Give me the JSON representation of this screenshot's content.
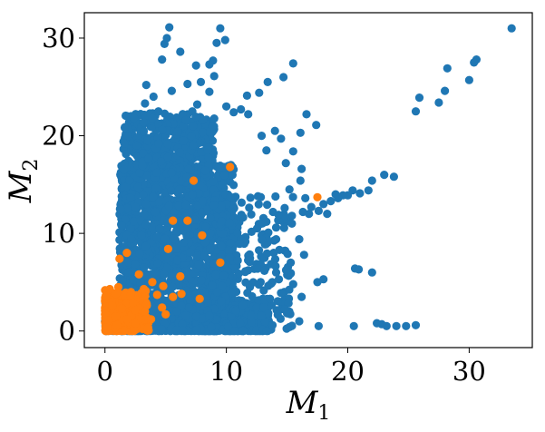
{
  "chart_data": {
    "type": "scatter",
    "xlabel": "M",
    "xlabel_sub": "1",
    "ylabel": "M",
    "ylabel_sub": "2",
    "xlim": [
      -1.7,
      35.2
    ],
    "ylim": [
      -1.7,
      32.6
    ],
    "x_ticks": [
      0,
      10,
      20,
      30
    ],
    "x_tick_labels": [
      "0",
      "10",
      "20",
      "30"
    ],
    "y_ticks": [
      0,
      10,
      20,
      30
    ],
    "y_tick_labels": [
      "0",
      "10",
      "20",
      "30"
    ],
    "grid": false,
    "legend": "none",
    "series": [
      {
        "color": "#1f77b4",
        "points": [
          [
            33.5,
            31.0
          ],
          [
            30.6,
            27.8
          ],
          [
            30.4,
            27.5
          ],
          [
            30.0,
            25.7
          ],
          [
            28.2,
            26.9
          ],
          [
            28.0,
            24.6
          ],
          [
            27.5,
            23.4
          ],
          [
            25.9,
            23.9
          ],
          [
            25.6,
            22.5
          ],
          [
            23.8,
            15.8
          ],
          [
            23.0,
            16.0
          ],
          [
            22.0,
            15.4
          ],
          [
            21.7,
            14.4
          ],
          [
            21.0,
            14.1
          ],
          [
            20.4,
            14.4
          ],
          [
            20.0,
            13.9
          ],
          [
            19.6,
            13.9
          ],
          [
            19.2,
            13.6
          ],
          [
            18.6,
            13.3
          ],
          [
            18.0,
            13.0
          ],
          [
            17.6,
            12.3
          ],
          [
            17.0,
            12.7
          ],
          [
            16.8,
            12.0
          ],
          [
            16.3,
            12.2
          ],
          [
            18.3,
            12.0
          ],
          [
            19.0,
            14.0
          ],
          [
            25.6,
            0.6
          ],
          [
            24.8,
            0.5
          ],
          [
            24.0,
            0.5
          ],
          [
            23.2,
            0.5
          ],
          [
            22.8,
            0.7
          ],
          [
            22.4,
            0.8
          ],
          [
            20.5,
            0.5
          ],
          [
            20.6,
            6.4
          ],
          [
            20.9,
            6.3
          ],
          [
            22.0,
            6.0
          ],
          [
            18.0,
            5.3
          ],
          [
            17.5,
            5.0
          ],
          [
            16.4,
            7.8
          ],
          [
            16.0,
            9.4
          ],
          [
            16.2,
            3.5
          ],
          [
            17.6,
            0.5
          ],
          [
            16.0,
            1.0
          ],
          [
            15.2,
            0.4
          ],
          [
            15.0,
            1.8
          ],
          [
            15.5,
            27.4
          ],
          [
            14.7,
            26.0
          ],
          [
            13.4,
            25.5
          ],
          [
            12.7,
            24.4
          ],
          [
            11.7,
            24.1
          ],
          [
            11.2,
            22.7
          ],
          [
            11.8,
            22.2
          ],
          [
            16.6,
            22.2
          ],
          [
            17.4,
            21.1
          ],
          [
            16.1,
            20.3
          ],
          [
            14.5,
            19.7
          ],
          [
            14.0,
            20.5
          ],
          [
            12.9,
            20.0
          ],
          [
            13.3,
            18.5
          ],
          [
            15.5,
            18.4
          ],
          [
            14.9,
            17.2
          ],
          [
            16.2,
            16.6
          ],
          [
            16.1,
            15.4
          ],
          [
            15.2,
            14.5
          ],
          [
            16.5,
            13.6
          ],
          [
            14.8,
            12.6
          ],
          [
            14.3,
            11.9
          ],
          [
            15.4,
            11.0
          ],
          [
            14.1,
            9.4
          ],
          [
            13.9,
            8.0
          ],
          [
            15.3,
            7.0
          ],
          [
            14.1,
            6.0
          ],
          [
            15.5,
            4.8
          ],
          [
            14.5,
            3.9
          ],
          [
            13.6,
            3.3
          ],
          [
            14.8,
            2.2
          ],
          [
            13.8,
            0.6
          ],
          [
            5.3,
            31.1
          ],
          [
            9.5,
            31.0
          ],
          [
            9.9,
            29.8
          ],
          [
            5.1,
            30.0
          ],
          [
            4.9,
            29.4
          ],
          [
            6.2,
            28.6
          ],
          [
            4.7,
            27.8
          ],
          [
            9.2,
            29.5
          ],
          [
            8.9,
            27.7
          ],
          [
            7.5,
            27.2
          ],
          [
            8.6,
            27.3
          ],
          [
            6.8,
            25.3
          ],
          [
            7.9,
            25.5
          ],
          [
            9.0,
            26.1
          ],
          [
            3.4,
            25.2
          ],
          [
            4.0,
            24.0
          ],
          [
            5.5,
            24.6
          ],
          [
            8.6,
            24.5
          ],
          [
            3.3,
            23.3
          ],
          [
            10.0,
            23.0
          ],
          [
            3.9,
            21.8
          ],
          [
            4.4,
            22.5
          ],
          [
            2.4,
            21.8
          ],
          [
            3.5,
            19.5
          ],
          [
            1.9,
            20.0
          ],
          [
            7.6,
            23.2
          ],
          [
            7.2,
            22.5
          ],
          [
            10.6,
            22.4
          ],
          [
            4.7,
            20.6
          ],
          [
            2.6,
            19.0
          ],
          [
            1.6,
            19.2
          ]
        ]
      },
      {
        "color": "#ff7f0e",
        "points": [
          [
            10.3,
            16.8
          ],
          [
            17.5,
            13.7
          ],
          [
            7.3,
            15.4
          ],
          [
            5.6,
            11.3
          ],
          [
            6.8,
            11.3
          ],
          [
            8.0,
            9.8
          ],
          [
            5.2,
            8.4
          ],
          [
            9.5,
            7.0
          ],
          [
            1.8,
            8.0
          ],
          [
            1.2,
            7.4
          ],
          [
            6.2,
            5.6
          ],
          [
            2.8,
            5.8
          ],
          [
            3.9,
            5.0
          ],
          [
            4.8,
            4.6
          ],
          [
            3.2,
            4.3
          ],
          [
            5.6,
            3.5
          ],
          [
            7.8,
            3.3
          ],
          [
            6.3,
            3.8
          ],
          [
            2.3,
            2.9
          ],
          [
            4.7,
            2.4
          ],
          [
            3.3,
            2.0
          ],
          [
            1.8,
            1.2
          ],
          [
            0.9,
            1.5
          ],
          [
            1.4,
            2.3
          ],
          [
            0.6,
            2.6
          ],
          [
            0.4,
            4.3
          ],
          [
            2.5,
            0.8
          ],
          [
            3.8,
            1.2
          ],
          [
            5.0,
            1.7
          ],
          [
            0.2,
            0.4
          ],
          [
            1.0,
            0.6
          ],
          [
            2.1,
            3.6
          ],
          [
            4.3,
            3.7
          ],
          [
            1.1,
            4.5
          ],
          [
            0.3,
            1.1
          ]
        ]
      }
    ]
  }
}
